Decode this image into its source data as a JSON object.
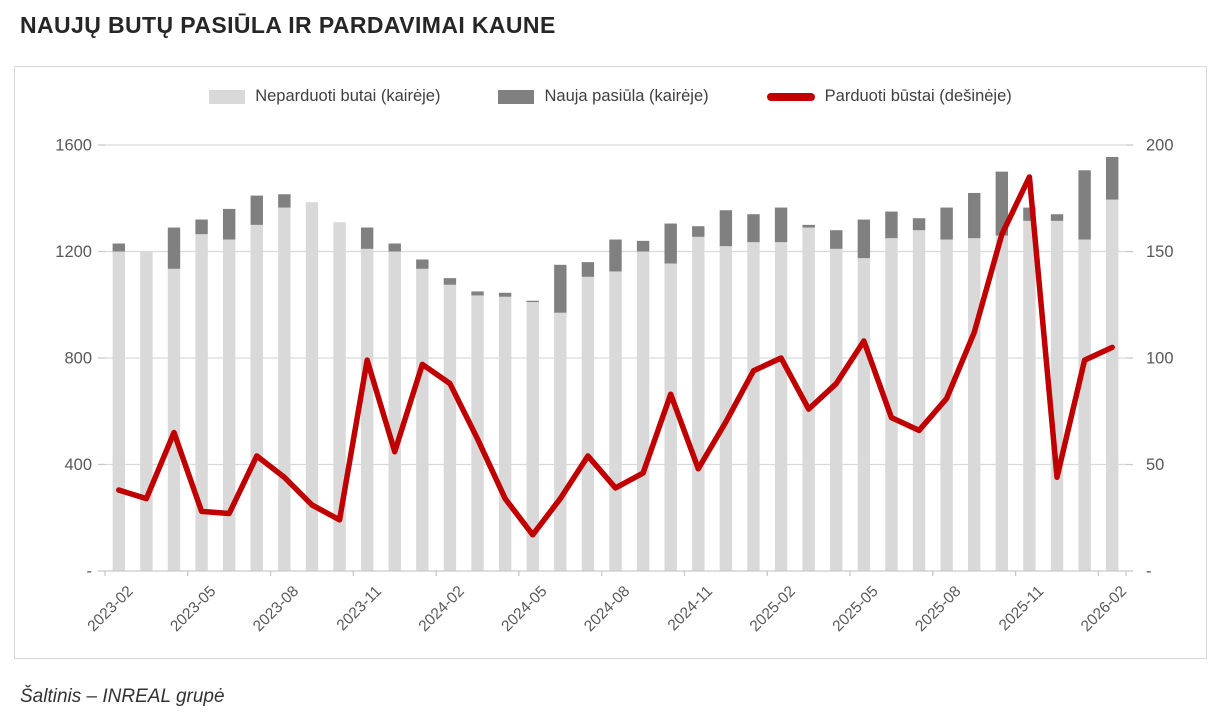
{
  "page": {
    "title": "NAUJŲ BUTŲ PASIŪLA IR PARDAVIMAI KAUNE",
    "source": "Šaltinis – INREAL grupė"
  },
  "colors": {
    "unsold_bar": "#d9d9d9",
    "new_supply_bar": "#808080",
    "sold_line": "#c00000",
    "gridline": "#d9d9d9",
    "axis_line": "#c9c9c9",
    "axis_text": "#595959",
    "title_text": "#262626",
    "panel_border": "#d9d9d9"
  },
  "chart_data": {
    "type": "combo-bar-line",
    "categories": [
      "2023-02",
      "2023-03",
      "2023-04",
      "2023-05",
      "2023-06",
      "2023-07",
      "2023-08",
      "2023-09",
      "2023-10",
      "2023-11",
      "2023-12",
      "2024-01",
      "2024-02",
      "2024-03",
      "2024-04",
      "2024-05",
      "2024-06",
      "2024-07",
      "2024-08",
      "2024-09",
      "2024-10",
      "2024-11",
      "2024-12",
      "2025-01",
      "2025-02",
      "2025-03",
      "2025-04",
      "2025-05",
      "2025-06",
      "2025-07",
      "2025-08",
      "2025-09",
      "2025-10",
      "2025-11",
      "2025-12",
      "2026-01",
      "2026-02"
    ],
    "series": [
      {
        "name": "Neparduoti butai (kairėje)",
        "type": "bar",
        "stack": "left-stack",
        "axis": "left",
        "swatch": "unsold_bar",
        "values": [
          1200,
          1200,
          1135,
          1265,
          1245,
          1300,
          1365,
          1385,
          1310,
          1210,
          1200,
          1135,
          1075,
          1035,
          1030,
          1010,
          970,
          1105,
          1125,
          1200,
          1155,
          1255,
          1220,
          1235,
          1235,
          1290,
          1210,
          1175,
          1250,
          1280,
          1245,
          1250,
          1260,
          1315,
          1315,
          1245,
          1395
        ]
      },
      {
        "name": "Nauja pasiūla (kairėje)",
        "type": "bar",
        "stack": "left-stack",
        "axis": "left",
        "swatch": "new_supply_bar",
        "values": [
          30,
          0,
          155,
          55,
          115,
          110,
          50,
          0,
          0,
          80,
          30,
          35,
          25,
          15,
          15,
          5,
          180,
          55,
          120,
          40,
          150,
          40,
          135,
          105,
          130,
          10,
          70,
          145,
          100,
          45,
          120,
          170,
          240,
          50,
          25,
          260,
          160
        ]
      },
      {
        "name": "Parduoti būstai (dešinėje)",
        "type": "line",
        "axis": "right",
        "swatch": "sold_line",
        "values": [
          38,
          34,
          65,
          28,
          27,
          54,
          44,
          31,
          24,
          99,
          56,
          97,
          88,
          62,
          34,
          17,
          34,
          54,
          39,
          46,
          83,
          48,
          70,
          94,
          100,
          76,
          88,
          108,
          72,
          66,
          81,
          112,
          158,
          185,
          44,
          99,
          105
        ]
      }
    ],
    "left_axis": {
      "min": 0,
      "max": 1600,
      "ticks": [
        0,
        400,
        800,
        1200,
        1600
      ],
      "tick_labels": [
        "-",
        "400",
        "800",
        "1200",
        "1600"
      ]
    },
    "right_axis": {
      "min": 0,
      "max": 200,
      "ticks": [
        0,
        50,
        100,
        150,
        200
      ],
      "tick_labels": [
        "-",
        "50",
        "100",
        "150",
        "200"
      ]
    },
    "x_axis": {
      "label_every": 3,
      "tick_labels": [
        "2023-02",
        "2023-05",
        "2023-08",
        "2023-11",
        "2024-02",
        "2024-05",
        "2024-08",
        "2024-11",
        "2025-02",
        "2025-05",
        "2025-08",
        "2025-11",
        "2026-02"
      ]
    },
    "grid": true,
    "legend_position": "top-center"
  }
}
